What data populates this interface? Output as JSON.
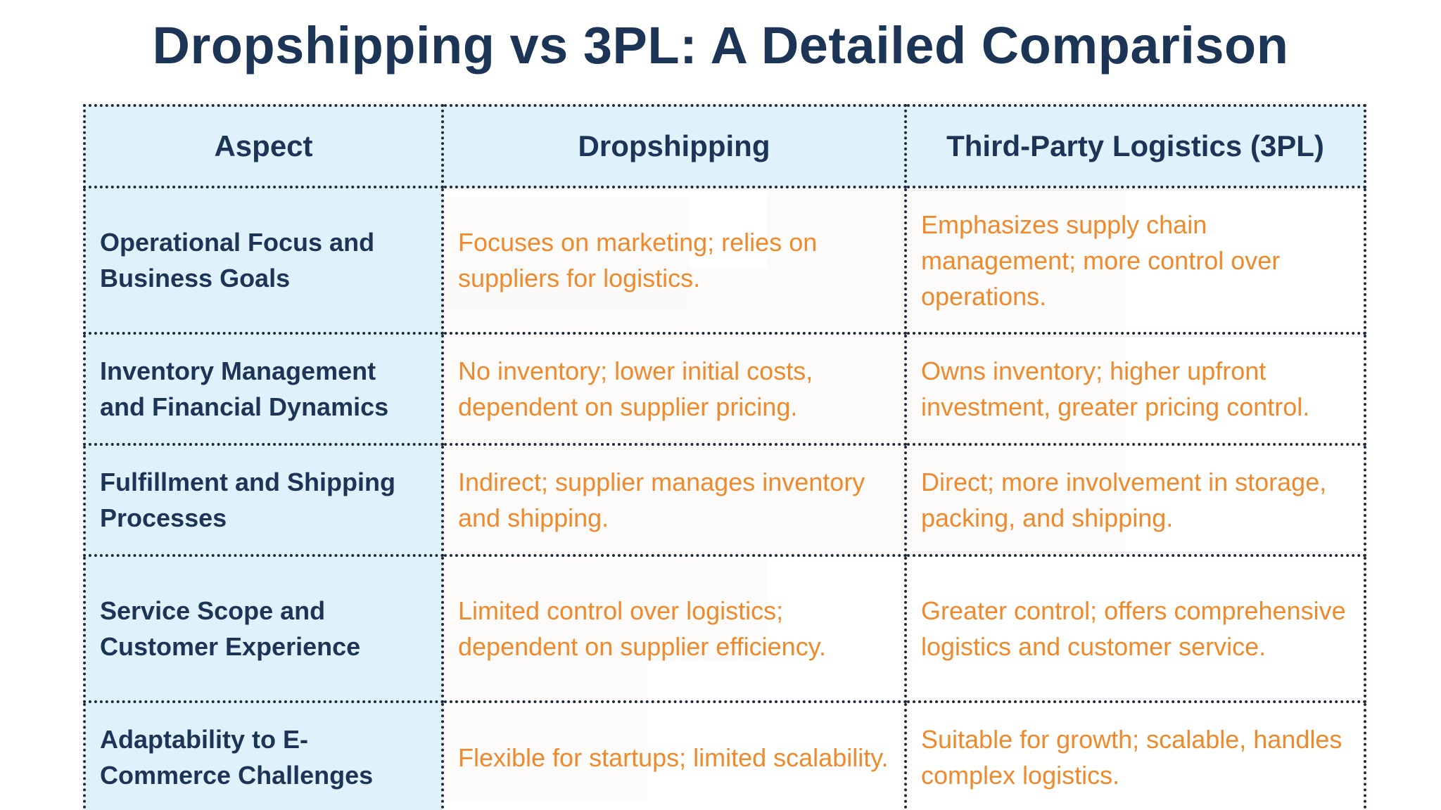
{
  "title": "Dropshipping vs 3PL: A Detailed Comparison",
  "table": {
    "headers": [
      "Aspect",
      "Dropshipping",
      "Third-Party Logistics (3PL)"
    ],
    "rows": [
      {
        "aspect": "Operational Focus and Business Goals",
        "dropshipping": "Focuses on marketing; relies on suppliers for logistics.",
        "third_party_logistics": "Emphasizes supply chain management; more control over operations."
      },
      {
        "aspect": "Inventory Management and Financial Dynamics",
        "dropshipping": "No inventory; lower initial costs, dependent on supplier pricing.",
        "third_party_logistics": "Owns inventory; higher upfront investment, greater pricing control."
      },
      {
        "aspect": "Fulfillment and Shipping Processes",
        "dropshipping": "Indirect; supplier manages inventory and shipping.",
        "third_party_logistics": "Direct; more involvement in storage, packing, and shipping."
      },
      {
        "aspect": "Service Scope and Customer Experience",
        "dropshipping": "Limited control over logistics; dependent on supplier efficiency.",
        "third_party_logistics": "Greater control; offers comprehensive logistics and customer service."
      },
      {
        "aspect": "Adaptability to E-Commerce Challenges",
        "dropshipping": "Flexible for startups; limited scalability.",
        "third_party_logistics": "Suitable for growth; scalable, handles complex logistics."
      }
    ]
  },
  "colors": {
    "title": "#1c3557",
    "header_bg": "#dff1fb",
    "aspect_text": "#1c3557",
    "body_text": "#ee8a2c",
    "border": "#1e2a3a"
  },
  "background_decoration": "faint cardboard-box illustration behind table"
}
